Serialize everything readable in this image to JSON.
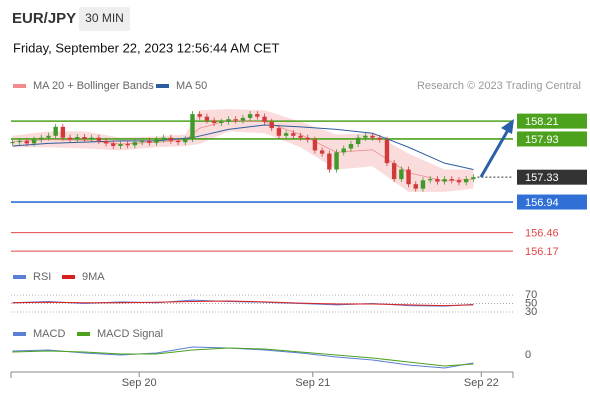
{
  "header": {
    "symbol": "EUR/JPY",
    "interval": "30 MIN",
    "timestamp": "Friday, September 22, 2023 12:56:44 AM CET"
  },
  "chart_data": [
    {
      "type": "candlestick",
      "source": "Research © 2023 Trading Central",
      "xlim": [
        -0.2,
        69.5
      ],
      "ylim": [
        156.03,
        158.62
      ],
      "up_color": "#3f9a2a",
      "down_color": "#d23a3a",
      "close": [
        157.88,
        157.9,
        157.86,
        157.92,
        157.95,
        157.98,
        158.12,
        157.95,
        157.92,
        157.96,
        157.93,
        157.95,
        157.9,
        157.86,
        157.82,
        157.85,
        157.83,
        157.88,
        157.9,
        157.87,
        157.92,
        157.95,
        157.9,
        157.88,
        157.93,
        158.32,
        158.28,
        158.22,
        158.18,
        158.2,
        158.24,
        158.22,
        158.26,
        158.32,
        158.28,
        158.2,
        158.1,
        157.98,
        158.02,
        157.98,
        157.95,
        157.92,
        157.75,
        157.7,
        157.45,
        157.72,
        157.78,
        157.85,
        157.95,
        157.98,
        157.95,
        157.92,
        157.55,
        157.3,
        157.45,
        157.22,
        157.15,
        157.28,
        157.3,
        157.26,
        157.3,
        157.28,
        157.25,
        157.3,
        157.33
      ],
      "series": [
        {
          "name": "MA 20 + Bollinger Bands",
          "color": "#f28b8b",
          "x": [
            0,
            5,
            10,
            15,
            20,
            24,
            26,
            30,
            35,
            40,
            45,
            50,
            55,
            60,
            64
          ],
          "upper": [
            157.98,
            158.05,
            158.05,
            157.95,
            157.97,
            158.0,
            158.38,
            158.4,
            158.38,
            158.2,
            158.0,
            158.02,
            157.7,
            157.45,
            157.45
          ],
          "values": [
            157.89,
            157.92,
            157.91,
            157.85,
            157.88,
            157.91,
            158.1,
            158.22,
            158.2,
            158.0,
            157.72,
            157.76,
            157.4,
            157.27,
            157.3
          ],
          "lower": [
            157.8,
            157.8,
            157.78,
            157.75,
            157.8,
            157.82,
            157.85,
            158.05,
            158.02,
            157.8,
            157.45,
            157.5,
            157.1,
            157.1,
            157.15
          ]
        },
        {
          "name": "MA 50",
          "color": "#2e5e9e",
          "x": [
            0,
            5,
            10,
            15,
            20,
            25,
            30,
            35,
            40,
            45,
            50,
            55,
            60,
            64
          ],
          "values": [
            157.82,
            157.86,
            157.88,
            157.9,
            157.9,
            157.95,
            158.08,
            158.15,
            158.12,
            158.08,
            158.02,
            157.8,
            157.55,
            157.45
          ]
        }
      ],
      "levels": [
        {
          "value": 158.21,
          "color": "#4ca21c",
          "line": "solid",
          "label_style": "box"
        },
        {
          "value": 157.93,
          "color": "#4ca21c",
          "line": "solid",
          "label_style": "box"
        },
        {
          "value": 157.33,
          "color": "#333333",
          "line": "dotted",
          "label_style": "box"
        },
        {
          "value": 156.94,
          "color": "#2f6fd6",
          "line": "solid",
          "label_style": "box"
        },
        {
          "value": 156.46,
          "color": "#e04848",
          "line": "thin",
          "label_style": "text"
        },
        {
          "value": 156.17,
          "color": "#e04848",
          "line": "thin",
          "label_style": "text"
        }
      ]
    },
    {
      "type": "line",
      "xlim": [
        -0.2,
        69.5
      ],
      "ylim": [
        11,
        94
      ],
      "yticks": [
        30,
        50,
        70
      ],
      "grid": "dotted",
      "series": [
        {
          "name": "RSI",
          "color": "#5b7fd6",
          "x": [
            0,
            5,
            10,
            15,
            20,
            25,
            30,
            35,
            40,
            45,
            50,
            55,
            60,
            64
          ],
          "values": [
            52,
            55,
            50,
            54,
            52,
            58,
            55,
            53,
            50,
            47,
            50,
            45,
            44,
            48
          ]
        },
        {
          "name": "9MA",
          "color": "#d92020",
          "x": [
            0,
            5,
            10,
            15,
            20,
            25,
            30,
            35,
            40,
            45,
            50,
            55,
            60,
            64
          ],
          "values": [
            52,
            53,
            52,
            52,
            53,
            55,
            56,
            54,
            51,
            49,
            49,
            47,
            45,
            47
          ]
        }
      ]
    },
    {
      "type": "line",
      "xlim": [
        -0.2,
        69.5
      ],
      "ylim": [
        -0.17,
        0.15
      ],
      "yticks": [
        0
      ],
      "grid": "none",
      "xticks": [
        {
          "value": 17.6,
          "label": "Sep 20"
        },
        {
          "value": 41.7,
          "label": "Sep 21"
        },
        {
          "value": 65.1,
          "label": "Sep 22"
        }
      ],
      "series": [
        {
          "name": "MACD",
          "color": "#5b7fd6",
          "x": [
            0,
            5,
            10,
            15,
            20,
            25,
            30,
            35,
            40,
            45,
            50,
            55,
            60,
            64
          ],
          "values": [
            0.04,
            0.05,
            0.02,
            0.0,
            0.02,
            0.08,
            0.07,
            0.05,
            0.02,
            -0.02,
            -0.05,
            -0.1,
            -0.13,
            -0.08
          ]
        },
        {
          "name": "MACD Signal",
          "color": "#4ca21c",
          "x": [
            0,
            5,
            10,
            15,
            20,
            25,
            30,
            35,
            40,
            45,
            50,
            55,
            60,
            64
          ],
          "values": [
            0.03,
            0.04,
            0.03,
            0.01,
            0.01,
            0.05,
            0.07,
            0.06,
            0.03,
            0.0,
            -0.03,
            -0.07,
            -0.11,
            -0.09
          ]
        }
      ]
    }
  ]
}
